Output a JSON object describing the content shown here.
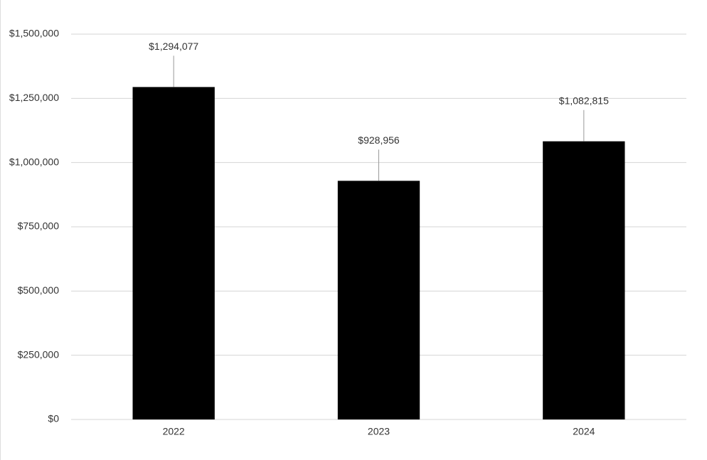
{
  "chart_data": {
    "type": "bar",
    "categories": [
      "2022",
      "2023",
      "2024"
    ],
    "values": [
      1294077,
      928956,
      1082815
    ],
    "value_labels": [
      "$1,294,077",
      "$928,956",
      "$1,082,815"
    ],
    "color": "#000000",
    "ylim": [
      0,
      1500000
    ],
    "yticks": [
      {
        "value": 0,
        "label": "$0"
      },
      {
        "value": 250000,
        "label": "$250,000"
      },
      {
        "value": 500000,
        "label": "$500,000"
      },
      {
        "value": 750000,
        "label": "$750,000"
      },
      {
        "value": 1000000,
        "label": "$1,000,000"
      },
      {
        "value": 1250000,
        "label": "$1,250,000"
      },
      {
        "value": 1500000,
        "label": "$1,500,000"
      }
    ],
    "grid": true
  }
}
